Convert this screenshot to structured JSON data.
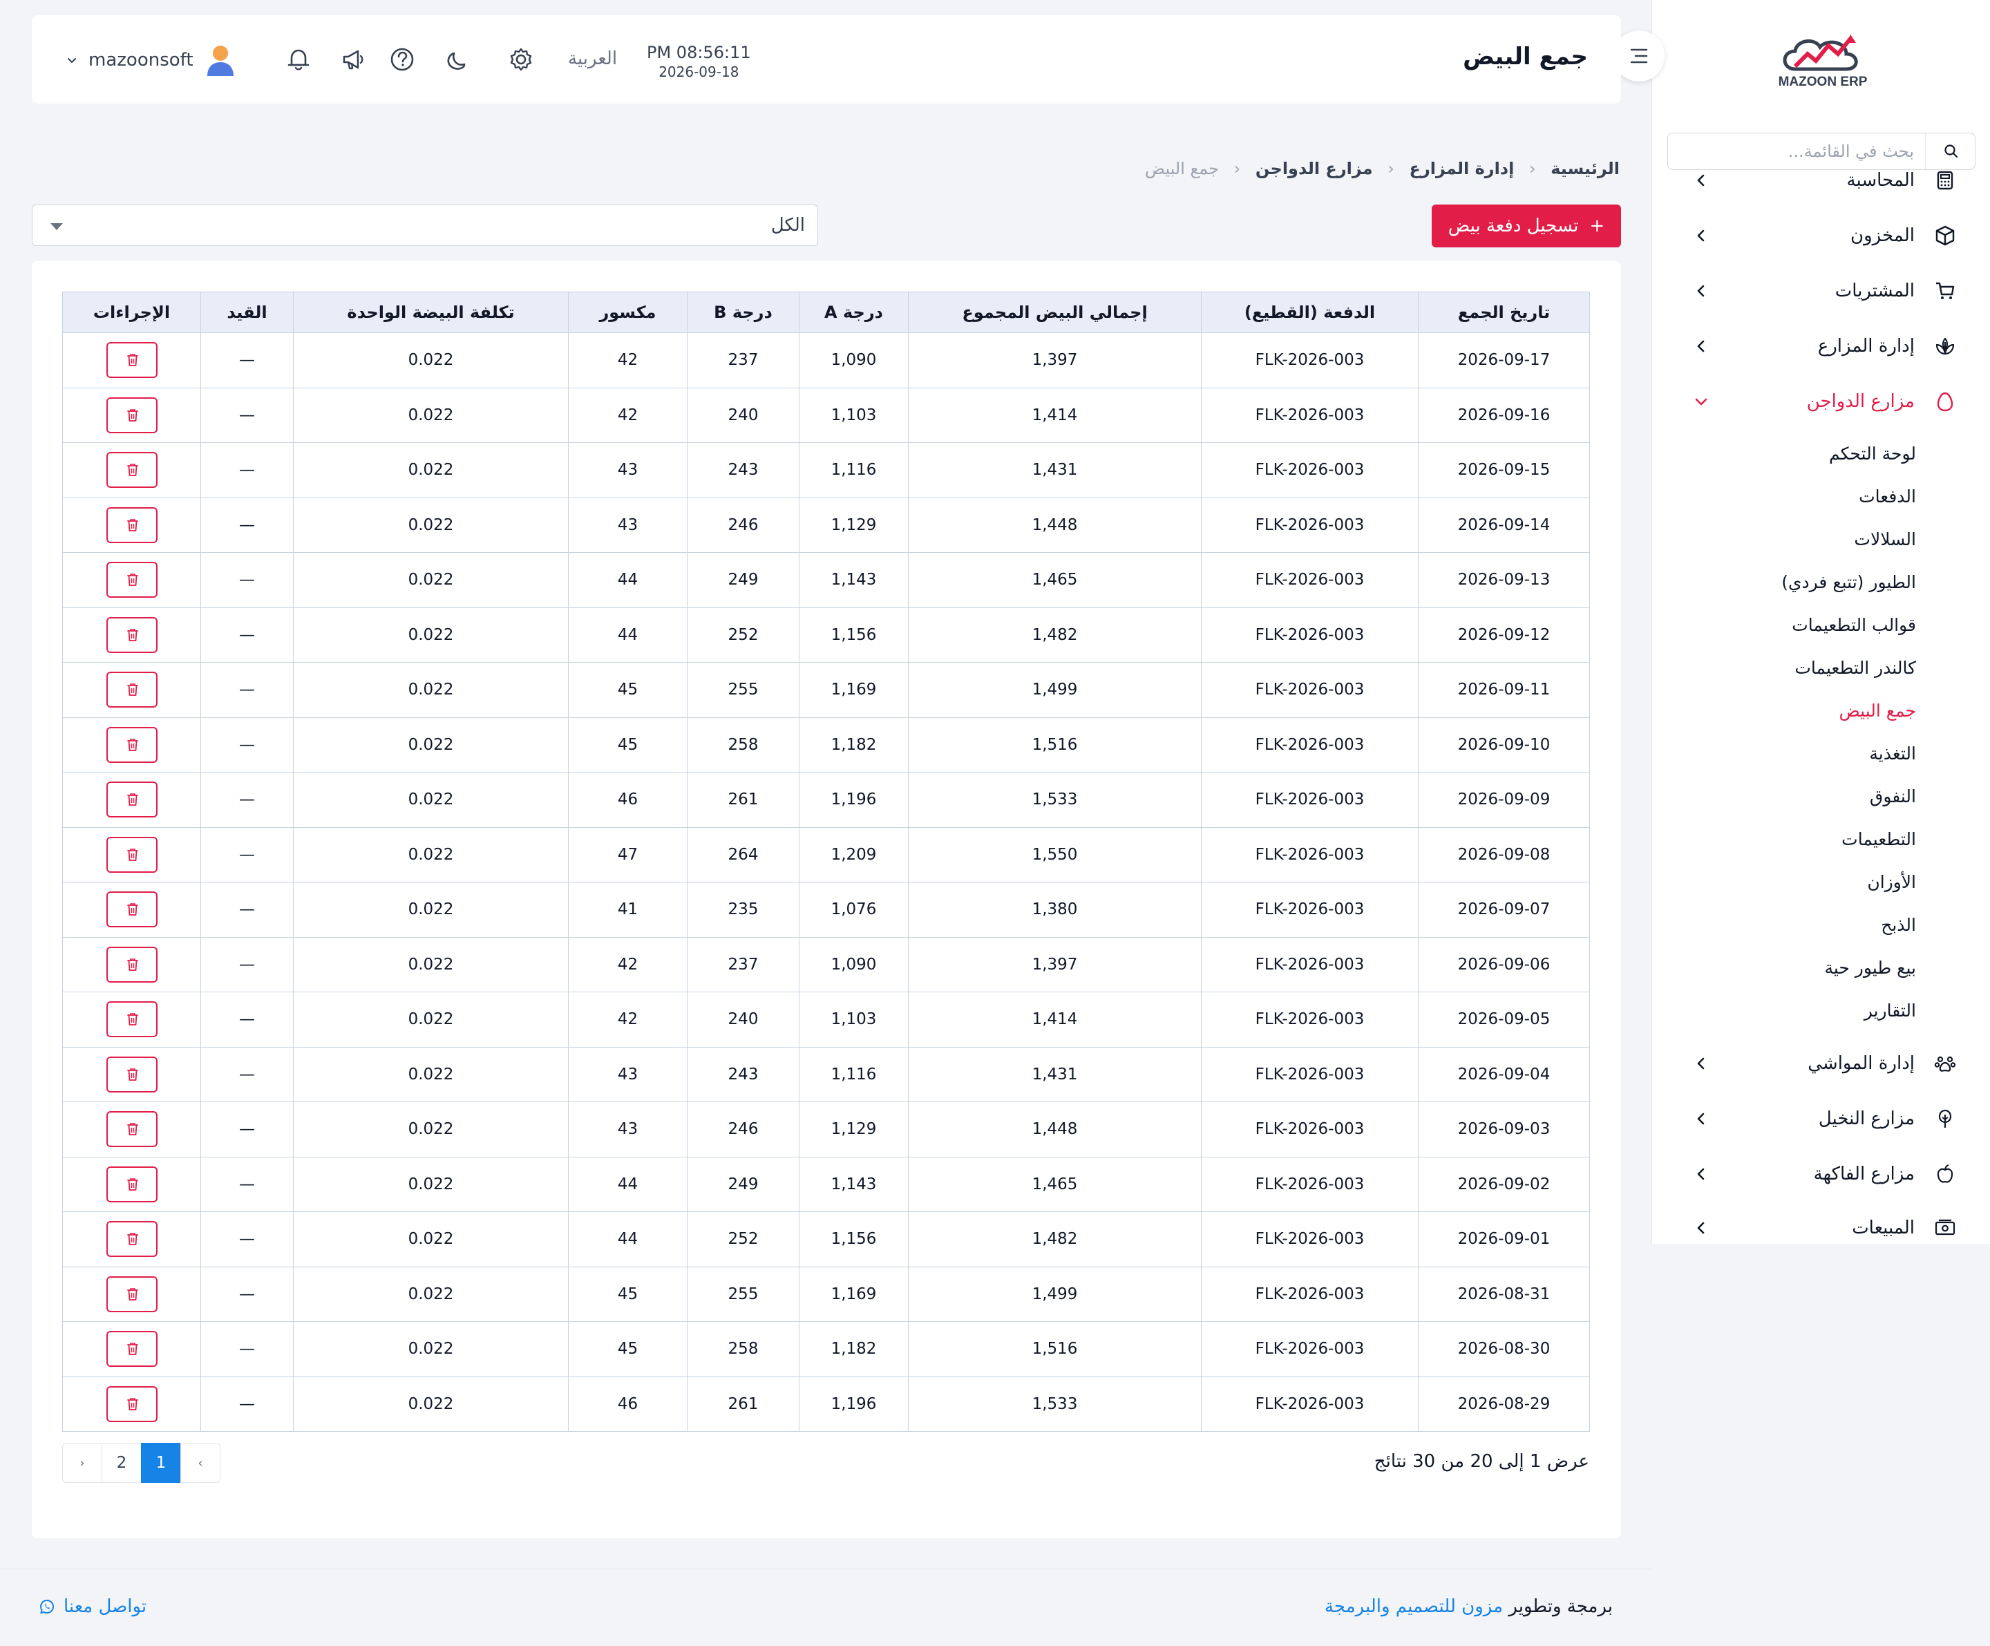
{
  "brand": {
    "logo_text": "MAZOON ERP"
  },
  "colors": {
    "accent": "#e11d48",
    "primary": "#1683e6",
    "header_bg": "#e8edf8"
  },
  "sidebar": {
    "search_placeholder": "بحث في القائمة...",
    "items_top": [
      {
        "label": "المحاسبة",
        "icon": "calculator-icon"
      },
      {
        "label": "المخزون",
        "icon": "box-icon"
      },
      {
        "label": "المشتريات",
        "icon": "cart-icon"
      },
      {
        "label": "إدارة المزارع",
        "icon": "plant-icon"
      },
      {
        "label": "مزارع الدواجن",
        "icon": "egg-icon",
        "active": true
      }
    ],
    "submenu": [
      "لوحة التحكم",
      "الدفعات",
      "السلالات",
      "الطيور (تتبع فردي)",
      "قوالب التطعيمات",
      "كالندر التطعيمات",
      "جمع البيض",
      "التغذية",
      "النفوق",
      "التطعيمات",
      "الأوزان",
      "الذبح",
      "بيع طيور حية",
      "التقارير"
    ],
    "submenu_active_index": 6,
    "items_bottom": [
      {
        "label": "إدارة المواشي",
        "icon": "paw-icon"
      },
      {
        "label": "مزارع النخيل",
        "icon": "palm-icon"
      },
      {
        "label": "مزارع الفاكهة",
        "icon": "apple-icon"
      },
      {
        "label": "المبيعات",
        "icon": "cash-icon"
      }
    ]
  },
  "header": {
    "title": "جمع البيض",
    "time": "PM 08:56:11",
    "date": "2026-09-18",
    "language": "العربية",
    "username": "mazoonsoft"
  },
  "breadcrumb": [
    "الرئيسية",
    "إدارة المزارع",
    "مزارع الدواجن"
  ],
  "breadcrumb_current": "جمع البيض",
  "toolbar": {
    "add_label": "تسجيل دفعة بيض",
    "add_icon": "+",
    "filter_value": "الكل"
  },
  "table": {
    "columns": [
      "تاريخ الجمع",
      "الدفعة (القطيع)",
      "إجمالي البيض المجموع",
      "درجة A",
      "درجة B",
      "مكسور",
      "تكلفة البيضة الواحدة",
      "القيد",
      "الإجراءات"
    ],
    "rows": [
      [
        "2026-09-17",
        "FLK-2026-003",
        "1,397",
        "1,090",
        "237",
        "42",
        "0.022",
        "—"
      ],
      [
        "2026-09-16",
        "FLK-2026-003",
        "1,414",
        "1,103",
        "240",
        "42",
        "0.022",
        "—"
      ],
      [
        "2026-09-15",
        "FLK-2026-003",
        "1,431",
        "1,116",
        "243",
        "43",
        "0.022",
        "—"
      ],
      [
        "2026-09-14",
        "FLK-2026-003",
        "1,448",
        "1,129",
        "246",
        "43",
        "0.022",
        "—"
      ],
      [
        "2026-09-13",
        "FLK-2026-003",
        "1,465",
        "1,143",
        "249",
        "44",
        "0.022",
        "—"
      ],
      [
        "2026-09-12",
        "FLK-2026-003",
        "1,482",
        "1,156",
        "252",
        "44",
        "0.022",
        "—"
      ],
      [
        "2026-09-11",
        "FLK-2026-003",
        "1,499",
        "1,169",
        "255",
        "45",
        "0.022",
        "—"
      ],
      [
        "2026-09-10",
        "FLK-2026-003",
        "1,516",
        "1,182",
        "258",
        "45",
        "0.022",
        "—"
      ],
      [
        "2026-09-09",
        "FLK-2026-003",
        "1,533",
        "1,196",
        "261",
        "46",
        "0.022",
        "—"
      ],
      [
        "2026-09-08",
        "FLK-2026-003",
        "1,550",
        "1,209",
        "264",
        "47",
        "0.022",
        "—"
      ],
      [
        "2026-09-07",
        "FLK-2026-003",
        "1,380",
        "1,076",
        "235",
        "41",
        "0.022",
        "—"
      ],
      [
        "2026-09-06",
        "FLK-2026-003",
        "1,397",
        "1,090",
        "237",
        "42",
        "0.022",
        "—"
      ],
      [
        "2026-09-05",
        "FLK-2026-003",
        "1,414",
        "1,103",
        "240",
        "42",
        "0.022",
        "—"
      ],
      [
        "2026-09-04",
        "FLK-2026-003",
        "1,431",
        "1,116",
        "243",
        "43",
        "0.022",
        "—"
      ],
      [
        "2026-09-03",
        "FLK-2026-003",
        "1,448",
        "1,129",
        "246",
        "43",
        "0.022",
        "—"
      ],
      [
        "2026-09-02",
        "FLK-2026-003",
        "1,465",
        "1,143",
        "249",
        "44",
        "0.022",
        "—"
      ],
      [
        "2026-09-01",
        "FLK-2026-003",
        "1,482",
        "1,156",
        "252",
        "44",
        "0.022",
        "—"
      ],
      [
        "2026-08-31",
        "FLK-2026-003",
        "1,499",
        "1,169",
        "255",
        "45",
        "0.022",
        "—"
      ],
      [
        "2026-08-30",
        "FLK-2026-003",
        "1,516",
        "1,182",
        "258",
        "45",
        "0.022",
        "—"
      ],
      [
        "2026-08-29",
        "FLK-2026-003",
        "1,533",
        "1,196",
        "261",
        "46",
        "0.022",
        "—"
      ]
    ]
  },
  "pagination": {
    "summary": "عرض 1 إلى 20 من 30 نتائج",
    "pages": [
      "1",
      "2"
    ],
    "current": "1",
    "prev": "‹",
    "next": "›"
  },
  "footer": {
    "contact": "تواصل معنا",
    "credit_prefix": "برمجة وتطوير",
    "credit_company": "مزون للتصميم والبرمجة"
  }
}
